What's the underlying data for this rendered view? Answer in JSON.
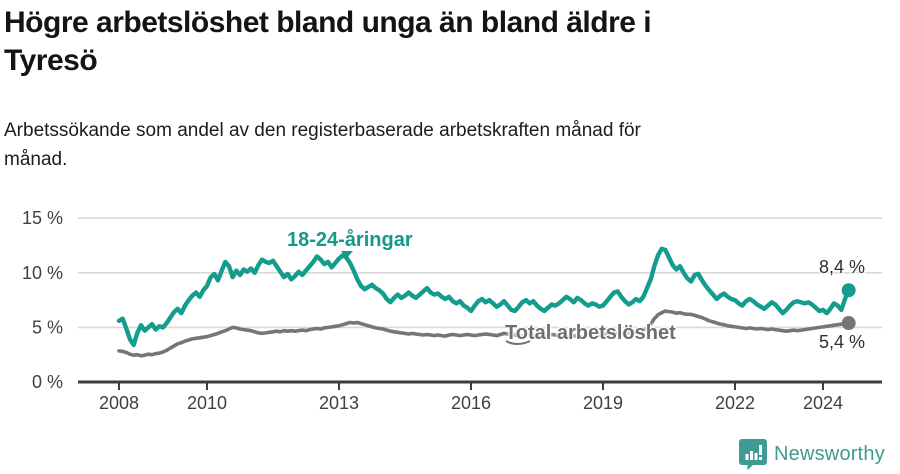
{
  "header": {
    "title_line1": "Högre arbetslöshet bland unga än bland äldre i",
    "title_line2": "Tyresö",
    "subtitle_line1": "Arbetssökande som andel av den registerbaserade arbetskraften månad för",
    "subtitle_line2": "månad."
  },
  "branding": {
    "name": "Newsworthy",
    "icon": "newsworthy-bar-chart-pin-icon",
    "color": "#3E9A93"
  },
  "chart_data": {
    "type": "line",
    "title": "Högre arbetslöshet bland unga än bland äldre i Tyresö",
    "unit": "percent",
    "frequency": "monthly",
    "x_start": "2008-01",
    "x_end": "2024-08",
    "ylim": [
      0,
      15.8
    ],
    "grid": "horizontal",
    "colors": {
      "background": "#ffffff",
      "gridline": "#d9d9d9",
      "axis": "#3c3c3c",
      "tick_text": "#404040"
    },
    "yticks": [
      {
        "value": 0,
        "label": "0 %"
      },
      {
        "value": 5,
        "label": "5 %"
      },
      {
        "value": 10,
        "label": "10 %"
      },
      {
        "value": 15,
        "label": "15 %"
      }
    ],
    "xticks": [
      {
        "year": 2008,
        "label": "2008"
      },
      {
        "year": 2010,
        "label": "2010"
      },
      {
        "year": 2013,
        "label": "2013"
      },
      {
        "year": 2016,
        "label": "2016"
      },
      {
        "year": 2019,
        "label": "2019"
      },
      {
        "year": 2022,
        "label": "2022"
      },
      {
        "year": 2024,
        "label": "2024"
      }
    ],
    "series": [
      {
        "name": "18-24-åringar",
        "color": "#149C8D",
        "end_label": "8,4 %",
        "end_value": 8.4,
        "values": [
          5.6,
          5.8,
          4.9,
          3.9,
          3.4,
          4.5,
          5.2,
          4.7,
          5.0,
          5.3,
          4.8,
          5.1,
          5.0,
          5.4,
          5.9,
          6.4,
          6.7,
          6.3,
          7.0,
          7.5,
          7.9,
          8.2,
          7.8,
          8.4,
          8.8,
          9.6,
          9.9,
          9.3,
          10.2,
          11.0,
          10.6,
          9.6,
          10.2,
          9.8,
          10.3,
          10.1,
          10.4,
          10.0,
          10.7,
          11.2,
          11.0,
          10.9,
          11.1,
          10.6,
          10.1,
          9.6,
          9.9,
          9.4,
          9.7,
          10.1,
          9.8,
          10.2,
          10.6,
          11.0,
          11.5,
          11.2,
          10.8,
          11.0,
          10.5,
          10.9,
          11.3,
          11.6,
          11.4,
          10.9,
          10.2,
          9.4,
          8.8,
          8.5,
          8.7,
          8.9,
          8.6,
          8.4,
          8.1,
          7.6,
          7.3,
          7.7,
          8.0,
          7.7,
          7.9,
          8.2,
          7.9,
          7.7,
          8.0,
          8.3,
          8.6,
          8.2,
          8.0,
          8.1,
          7.8,
          7.6,
          7.8,
          7.4,
          7.2,
          7.4,
          7.0,
          6.8,
          6.5,
          7.0,
          7.4,
          7.6,
          7.3,
          7.5,
          7.2,
          6.9,
          7.1,
          7.4,
          7.0,
          6.6,
          6.5,
          6.9,
          7.3,
          7.5,
          7.2,
          7.4,
          7.0,
          6.7,
          6.5,
          6.8,
          7.1,
          7.0,
          7.2,
          7.5,
          7.8,
          7.6,
          7.3,
          7.7,
          7.5,
          7.2,
          7.0,
          7.2,
          7.1,
          6.9,
          7.0,
          7.4,
          7.8,
          8.2,
          8.3,
          7.8,
          7.4,
          7.1,
          7.3,
          7.6,
          7.4,
          7.8,
          8.6,
          9.4,
          10.6,
          11.6,
          12.2,
          12.1,
          11.4,
          10.7,
          10.3,
          10.6,
          10.0,
          9.5,
          9.2,
          9.8,
          9.9,
          9.3,
          8.8,
          8.4,
          8.0,
          7.6,
          7.9,
          8.1,
          7.8,
          7.6,
          7.5,
          7.2,
          7.0,
          7.4,
          7.6,
          7.4,
          7.1,
          6.9,
          6.7,
          7.0,
          7.3,
          7.1,
          6.7,
          6.3,
          6.6,
          7.0,
          7.3,
          7.4,
          7.3,
          7.2,
          7.3,
          7.1,
          6.8,
          6.5,
          6.6,
          6.3,
          6.7,
          7.2,
          7.0,
          6.6,
          7.6,
          8.4
        ]
      },
      {
        "name": "Total arbetslöshet",
        "color": "#76767A",
        "end_label": "5,4 %",
        "end_value": 5.4,
        "values": [
          2.85,
          2.8,
          2.7,
          2.55,
          2.45,
          2.5,
          2.4,
          2.45,
          2.55,
          2.5,
          2.6,
          2.65,
          2.75,
          2.9,
          3.1,
          3.3,
          3.5,
          3.6,
          3.75,
          3.85,
          3.95,
          4.0,
          4.05,
          4.1,
          4.15,
          4.25,
          4.35,
          4.45,
          4.6,
          4.7,
          4.85,
          5.0,
          4.95,
          4.85,
          4.8,
          4.75,
          4.7,
          4.6,
          4.5,
          4.45,
          4.5,
          4.55,
          4.6,
          4.65,
          4.6,
          4.7,
          4.65,
          4.7,
          4.65,
          4.7,
          4.75,
          4.7,
          4.8,
          4.85,
          4.9,
          4.85,
          4.95,
          5.0,
          5.05,
          5.1,
          5.15,
          5.25,
          5.35,
          5.45,
          5.4,
          5.45,
          5.35,
          5.25,
          5.15,
          5.05,
          4.95,
          4.9,
          4.85,
          4.75,
          4.65,
          4.6,
          4.55,
          4.5,
          4.45,
          4.4,
          4.45,
          4.4,
          4.35,
          4.3,
          4.35,
          4.3,
          4.25,
          4.3,
          4.25,
          4.2,
          4.3,
          4.35,
          4.3,
          4.25,
          4.3,
          4.35,
          4.3,
          4.25,
          4.3,
          4.35,
          4.4,
          4.35,
          4.3,
          4.25,
          4.35,
          4.45,
          4.4,
          4.35,
          4.3,
          4.25,
          4.2,
          4.3,
          4.35,
          4.3,
          4.25,
          4.2,
          4.25,
          4.3,
          4.35,
          4.3,
          4.25,
          4.2,
          4.15,
          4.2,
          4.25,
          4.2,
          4.15,
          4.2,
          4.25,
          4.3,
          4.25,
          4.3,
          4.35,
          4.4,
          4.45,
          4.5,
          4.45,
          4.5,
          4.55,
          4.5,
          4.55,
          4.6,
          4.65,
          4.7,
          4.9,
          5.3,
          5.8,
          6.15,
          6.35,
          6.5,
          6.45,
          6.4,
          6.3,
          6.35,
          6.25,
          6.2,
          6.2,
          6.1,
          6.0,
          5.9,
          5.75,
          5.6,
          5.5,
          5.4,
          5.3,
          5.25,
          5.15,
          5.1,
          5.05,
          5.0,
          4.95,
          4.9,
          4.95,
          4.9,
          4.85,
          4.9,
          4.85,
          4.8,
          4.85,
          4.8,
          4.75,
          4.7,
          4.65,
          4.7,
          4.75,
          4.7,
          4.75,
          4.8,
          4.85,
          4.9,
          4.95,
          5.0,
          5.05,
          5.1,
          5.15,
          5.2,
          5.25,
          5.3,
          5.35,
          5.4
        ]
      }
    ]
  }
}
